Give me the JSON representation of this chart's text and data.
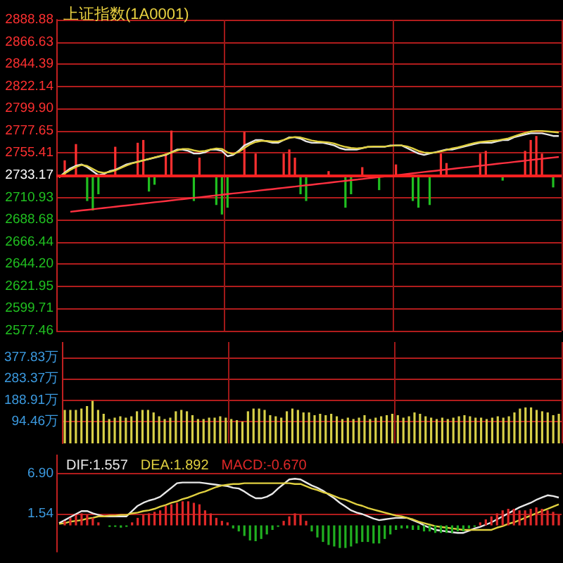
{
  "chart_data": [
    {
      "type": "line",
      "title": "上证指数(1A0001)",
      "categories": [
        null,
        null,
        null,
        null,
        null,
        null,
        null,
        null,
        null,
        null,
        null,
        null,
        null,
        null,
        null,
        null,
        null,
        null,
        null,
        null,
        null,
        null,
        null,
        null,
        null,
        null,
        null,
        null,
        null,
        null,
        null,
        null,
        null,
        null,
        null,
        null,
        null,
        null,
        null,
        null,
        null,
        null,
        null,
        null,
        null,
        null,
        null,
        null,
        null,
        null,
        null,
        null,
        null,
        null,
        null,
        null,
        null,
        null,
        null,
        null,
        null,
        null,
        null,
        null,
        null,
        null,
        null,
        null,
        null,
        null,
        null,
        null,
        null,
        null,
        null,
        null,
        null,
        null,
        null,
        null,
        null,
        null,
        null,
        null,
        null,
        null,
        null,
        null,
        null,
        null
      ],
      "ylim": [
        2577.46,
        2888.88
      ],
      "yticks": [
        2577.46,
        2599.71,
        2621.95,
        {
          "value": 2644.2,
          "label": "2644.20"
        },
        2666.44,
        2688.68,
        2710.93,
        2733.17,
        2755.41,
        2777.65,
        {
          "value": 2799.9,
          "label": "2799.90"
        },
        2822.14,
        2844.39,
        2866.63,
        2888.88
      ],
      "grid": true,
      "marker": "none",
      "ref_lines": [
        {
          "axis": "y",
          "value": 2733.17,
          "color": "#ff2020"
        }
      ],
      "series": [
        {
          "color": "#e8e8e8",
          "values": [
            2731.1,
            2735.9,
            2740.0,
            2742.7,
            2744.0,
            2741.3,
            2737.2,
            2733.2,
            2734.5,
            2737.2,
            2738.6,
            2741.3,
            2744.0,
            2745.4,
            2746.7,
            2748.1,
            2749.4,
            2750.8,
            2752.2,
            2753.5,
            2756.2,
            2758.9,
            2758.9,
            2757.6,
            2754.9,
            2754.9,
            2756.2,
            2758.9,
            2758.9,
            2757.6,
            2752.2,
            2753.5,
            2757.6,
            2763.0,
            2765.7,
            2768.4,
            2768.4,
            2767.1,
            2765.7,
            2765.7,
            2768.4,
            2771.1,
            2771.1,
            2769.8,
            2767.1,
            2765.7,
            2765.7,
            2765.7,
            2764.4,
            2763.0,
            2760.3,
            2758.9,
            2758.9,
            2758.9,
            2760.3,
            2761.6,
            2761.6,
            2761.6,
            2761.6,
            2763.0,
            2763.0,
            2763.0,
            2760.3,
            2757.6,
            2754.9,
            2753.5,
            2754.9,
            2756.2,
            2757.6,
            2758.9,
            2758.9,
            2760.3,
            2761.6,
            2763.0,
            2764.4,
            2765.7,
            2765.7,
            2765.7,
            2767.1,
            2768.4,
            2768.4,
            2771.1,
            2772.5,
            2773.9,
            2775.2,
            2775.2,
            2775.2,
            2773.9,
            2772.5,
            2772.5
          ]
        },
        {
          "color": "#e0d040",
          "values": [
            2731.1,
            2735.0,
            2738.5,
            2741.5,
            2743.5,
            2742.5,
            2739.5,
            2736.5,
            2735.5,
            2736.5,
            2738.0,
            2740.5,
            2743.0,
            2745.0,
            2746.5,
            2748.0,
            2749.5,
            2751.0,
            2752.5,
            2754.0,
            2756.0,
            2758.0,
            2759.5,
            2759.5,
            2758.0,
            2757.0,
            2757.5,
            2759.0,
            2760.0,
            2759.5,
            2756.0,
            2754.5,
            2756.5,
            2760.5,
            2764.0,
            2766.5,
            2767.5,
            2767.5,
            2767.0,
            2767.0,
            2768.5,
            2770.5,
            2771.5,
            2771.0,
            2769.5,
            2768.0,
            2767.0,
            2766.5,
            2766.0,
            2765.0,
            2763.0,
            2761.5,
            2760.5,
            2760.0,
            2760.5,
            2761.5,
            2762.0,
            2762.0,
            2762.0,
            2762.5,
            2763.0,
            2763.0,
            2762.0,
            2760.0,
            2757.5,
            2756.0,
            2755.5,
            2756.0,
            2757.0,
            2758.5,
            2760.0,
            2761.0,
            2762.5,
            2764.0,
            2765.5,
            2766.5,
            2767.0,
            2767.5,
            2768.0,
            2769.0,
            2770.0,
            2772.0,
            2774.0,
            2775.5,
            2777.0,
            2777.5,
            2777.5,
            2777.0,
            2776.5,
            2776.0
          ]
        },
        {
          "type": "bar",
          "color": "#ff3030",
          "base": [
            null,
            2733.17,
            null,
            2733.17,
            null,
            null,
            null,
            null,
            null,
            null,
            2733.17,
            null,
            null,
            null,
            2733.17,
            2733.17,
            null,
            null,
            null,
            2733.17,
            2733.17,
            null,
            null,
            null,
            null,
            2733.17,
            null,
            null,
            null,
            null,
            null,
            null,
            null,
            2733.17,
            null,
            2733.17,
            null,
            null,
            null,
            null,
            2733.17,
            2733.17,
            2733.17,
            null,
            null,
            null,
            null,
            null,
            2733.17,
            null,
            null,
            null,
            null,
            null,
            2733.17,
            null,
            null,
            null,
            null,
            null,
            2733.17,
            null,
            null,
            null,
            null,
            null,
            null,
            null,
            2733.17,
            2733.17,
            null,
            null,
            null,
            null,
            null,
            2733.17,
            2733.17,
            null,
            null,
            null,
            null,
            null,
            null,
            2733.17,
            2733.17,
            2733.17,
            2733.17,
            null,
            null,
            null
          ],
          "values": [
            null,
            14.9,
            null,
            31.2,
            null,
            null,
            null,
            null,
            null,
            null,
            28.5,
            null,
            null,
            null,
            32.5,
            35.3,
            null,
            null,
            null,
            21.7,
            44.7,
            null,
            null,
            null,
            null,
            17.6,
            null,
            null,
            null,
            null,
            null,
            null,
            null,
            43.4,
            null,
            21.7,
            null,
            null,
            null,
            null,
            21.7,
            25.8,
            17.6,
            null,
            null,
            null,
            null,
            null,
            4.1,
            null,
            null,
            null,
            null,
            null,
            8.1,
            null,
            null,
            null,
            null,
            null,
            10.8,
            null,
            null,
            null,
            null,
            null,
            null,
            null,
            21.7,
            12.2,
            null,
            null,
            null,
            null,
            null,
            21.7,
            24.4,
            null,
            null,
            null,
            null,
            null,
            null,
            24.4,
            35.3,
            39.3,
            21.7,
            null,
            null,
            null
          ]
        },
        {
          "type": "bar",
          "color": "#20c020",
          "base": [
            null,
            null,
            null,
            null,
            null,
            2733.17,
            2733.17,
            2733.17,
            null,
            null,
            null,
            null,
            null,
            null,
            null,
            null,
            2733.17,
            2733.17,
            null,
            null,
            null,
            null,
            null,
            null,
            2733.17,
            null,
            null,
            null,
            2733.17,
            2733.17,
            2733.17,
            null,
            null,
            null,
            null,
            null,
            null,
            null,
            null,
            null,
            null,
            null,
            null,
            2733.17,
            2733.17,
            null,
            null,
            null,
            null,
            null,
            null,
            2733.17,
            2733.17,
            null,
            null,
            null,
            null,
            2733.17,
            null,
            null,
            null,
            null,
            null,
            2733.17,
            2733.17,
            null,
            2733.17,
            null,
            null,
            null,
            null,
            null,
            null,
            null,
            null,
            null,
            null,
            null,
            null,
            2733.17,
            null,
            null,
            null,
            null,
            null,
            null,
            null,
            null,
            2733.17,
            null
          ],
          "values": [
            null,
            null,
            null,
            null,
            null,
            -25.8,
            -35.3,
            -19.0,
            null,
            null,
            null,
            null,
            null,
            null,
            null,
            null,
            -16.3,
            -9.5,
            null,
            null,
            null,
            null,
            null,
            null,
            -25.8,
            null,
            null,
            null,
            -29.8,
            -39.3,
            -32.5,
            null,
            null,
            null,
            null,
            null,
            null,
            null,
            null,
            null,
            null,
            null,
            null,
            -19.0,
            -25.8,
            null,
            null,
            null,
            null,
            null,
            null,
            -32.5,
            -19.0,
            null,
            null,
            null,
            null,
            -14.9,
            null,
            null,
            null,
            null,
            null,
            -25.8,
            -32.5,
            null,
            -29.8,
            null,
            null,
            null,
            null,
            null,
            null,
            null,
            null,
            null,
            null,
            null,
            null,
            -5.4,
            null,
            null,
            null,
            null,
            null,
            null,
            null,
            null,
            -12.2,
            null
          ]
        },
        {
          "color": "#ff3040",
          "values": [
            null,
            null,
            2696.6,
            2697.2,
            2697.9,
            2698.5,
            2699.1,
            2699.8,
            2700.4,
            2701.0,
            2701.6,
            2702.3,
            2702.9,
            2703.5,
            2704.2,
            2704.8,
            2705.4,
            2706.1,
            2706.7,
            2707.3,
            2708.0,
            2708.6,
            2709.2,
            2709.9,
            2710.5,
            2711.1,
            2711.7,
            2712.4,
            2713.0,
            2713.6,
            2714.3,
            2714.9,
            2715.5,
            2716.2,
            2716.8,
            2717.4,
            2718.1,
            2718.7,
            2719.3,
            2720.0,
            2720.6,
            2721.2,
            2721.8,
            2722.5,
            2723.1,
            2723.7,
            2724.4,
            2725.0,
            2725.6,
            2726.3,
            2726.9,
            2727.5,
            2728.2,
            2728.8,
            2729.4,
            2730.1,
            2730.7,
            2731.3,
            2731.9,
            2732.6,
            2733.2,
            2733.8,
            2734.5,
            2735.1,
            2735.7,
            2736.4,
            2737.0,
            2737.6,
            2738.3,
            2738.9,
            2739.5,
            2740.2,
            2740.8,
            2741.4,
            2742.0,
            2742.7,
            2743.3,
            2743.9,
            2744.6,
            2745.2,
            2745.8,
            2746.5,
            2747.1,
            2747.7,
            2748.4,
            2749.0,
            2749.6,
            2750.3,
            2750.9,
            2751.5
          ]
        }
      ]
    },
    {
      "type": "bar",
      "categories": [
        null,
        null,
        null,
        null,
        null,
        null,
        null,
        null,
        null,
        null,
        null,
        null,
        null,
        null,
        null,
        null,
        null,
        null,
        null,
        null,
        null,
        null,
        null,
        null,
        null,
        null,
        null,
        null,
        null,
        null,
        null,
        null,
        null,
        null,
        null,
        null,
        null,
        null,
        null,
        null,
        null,
        null,
        null,
        null,
        null,
        null,
        null,
        null,
        null,
        null,
        null,
        null,
        null,
        null,
        null,
        null,
        null,
        null,
        null,
        null,
        null,
        null,
        null,
        null,
        null,
        null,
        null,
        null,
        null,
        null,
        null,
        null,
        null,
        null,
        null,
        null,
        null,
        null,
        null,
        null,
        null,
        null,
        null,
        null,
        null,
        null,
        null,
        null,
        null,
        null
      ],
      "ylim": [
        0,
        445.5
      ],
      "yticks": [
        {
          "value": 94.46,
          "label": "94.46万"
        },
        {
          "value": 188.91,
          "label": "188.91万"
        },
        {
          "value": 283.37,
          "label": "283.37万"
        },
        {
          "value": 377.83,
          "label": "377.83万"
        }
      ],
      "grid": true,
      "color": "#d8d048",
      "values": [
        147,
        147,
        147,
        153,
        164,
        187,
        147,
        130,
        107,
        113,
        119,
        113,
        119,
        141,
        147,
        147,
        136,
        119,
        107,
        113,
        141,
        147,
        141,
        124,
        107,
        107,
        113,
        113,
        119,
        113,
        107,
        102,
        96,
        141,
        153,
        153,
        147,
        124,
        119,
        113,
        141,
        153,
        147,
        136,
        136,
        124,
        130,
        124,
        130,
        119,
        107,
        113,
        107,
        113,
        124,
        107,
        113,
        119,
        124,
        130,
        124,
        113,
        119,
        136,
        130,
        119,
        113,
        107,
        113,
        107,
        113,
        119,
        124,
        119,
        113,
        113,
        107,
        113,
        119,
        113,
        119,
        136,
        153,
        158,
        158,
        147,
        141,
        136,
        124,
        130
      ]
    },
    {
      "type": "line",
      "categories": [
        null,
        null,
        null,
        null,
        null,
        null,
        null,
        null,
        null,
        null,
        null,
        null,
        null,
        null,
        null,
        null,
        null,
        null,
        null,
        null,
        null,
        null,
        null,
        null,
        null,
        null,
        null,
        null,
        null,
        null,
        null,
        null,
        null,
        null,
        null,
        null,
        null,
        null,
        null,
        null,
        null,
        null,
        null,
        null,
        null,
        null,
        null,
        null,
        null,
        null,
        null,
        null,
        null,
        null,
        null,
        null,
        null,
        null,
        null,
        null,
        null,
        null,
        null,
        null,
        null,
        null,
        null,
        null,
        null,
        null,
        null,
        null,
        null,
        null,
        null,
        null,
        null,
        null,
        null,
        null,
        null,
        null,
        null,
        null,
        null,
        null,
        null,
        null,
        null,
        null
      ],
      "ylim": [
        -3.5,
        9.4
      ],
      "yticks": [
        1.54,
        {
          "value": 6.9,
          "label": "6.90"
        }
      ],
      "grid": "y",
      "marker": "none",
      "legend": "top left",
      "series": [
        {
          "name": "DIF:1.557",
          "color": "#e8e8e8",
          "values": [
            0.3,
            0.7,
            1.1,
            1.5,
            1.9,
            1.9,
            1.6,
            1.4,
            1.2,
            1.2,
            1.2,
            1.2,
            1.2,
            1.9,
            2.6,
            3.0,
            3.3,
            3.5,
            3.8,
            4.4,
            5.0,
            5.6,
            5.7,
            5.7,
            5.7,
            5.7,
            5.6,
            5.5,
            5.4,
            5.3,
            5.2,
            5.0,
            4.9,
            4.5,
            4.0,
            3.6,
            3.6,
            3.8,
            4.2,
            4.9,
            5.5,
            6.1,
            6.2,
            6.1,
            5.7,
            5.3,
            5.0,
            4.6,
            4.1,
            3.6,
            3.0,
            2.5,
            2.0,
            1.7,
            1.5,
            1.2,
            0.9,
            0.7,
            0.8,
            0.9,
            1.0,
            1.0,
            1.0,
            0.7,
            0.4,
            0.0,
            -0.3,
            -0.6,
            -0.7,
            -0.8,
            -0.9,
            -1.0,
            -1.0,
            -0.7,
            -0.4,
            -0.2,
            0.1,
            0.4,
            0.8,
            1.2,
            1.6,
            2.0,
            2.4,
            2.7,
            3.0,
            3.4,
            3.7,
            4.0,
            3.9,
            3.7
          ]
        },
        {
          "name": "DEA:1.892",
          "color": "#e0d040",
          "values": [
            0.2,
            0.3,
            0.5,
            0.6,
            0.7,
            0.9,
            1.0,
            1.2,
            1.2,
            1.3,
            1.3,
            1.4,
            1.4,
            1.6,
            1.7,
            1.9,
            2.0,
            2.2,
            2.5,
            2.7,
            3.0,
            3.2,
            3.5,
            3.7,
            4.0,
            4.3,
            4.5,
            4.8,
            5.1,
            5.3,
            5.4,
            5.5,
            5.5,
            5.6,
            5.6,
            5.6,
            5.6,
            5.6,
            5.6,
            5.6,
            5.6,
            5.6,
            5.5,
            5.5,
            5.2,
            4.9,
            4.7,
            4.4,
            4.2,
            3.9,
            3.6,
            3.4,
            3.1,
            2.8,
            2.6,
            2.3,
            2.1,
            1.9,
            1.7,
            1.5,
            1.3,
            1.2,
            1.0,
            0.8,
            0.5,
            0.3,
            0.1,
            -0.1,
            -0.2,
            -0.3,
            -0.4,
            -0.5,
            -0.6,
            -0.6,
            -0.6,
            -0.6,
            -0.6,
            -0.6,
            -0.3,
            -0.1,
            0.2,
            0.4,
            0.7,
            1.0,
            1.3,
            1.6,
            1.9,
            2.2,
            2.5,
            2.8
          ]
        },
        {
          "name": "MACD:-0.670",
          "type": "bar",
          "color": "#e02828",
          "values": [
            null,
            0.6,
            1.0,
            1.4,
            1.6,
            1.4,
            1.0,
            0.4,
            null,
            null,
            null,
            null,
            null,
            0.4,
            1.0,
            1.4,
            1.6,
            1.8,
            2.0,
            2.6,
            2.8,
            3.0,
            3.2,
            3.2,
            3.0,
            2.8,
            2.0,
            1.6,
            1.0,
            0.6,
            0.4,
            null,
            null,
            null,
            null,
            null,
            null,
            null,
            null,
            null,
            0.6,
            1.2,
            1.6,
            1.4,
            0.6,
            null,
            null,
            null,
            null,
            null,
            null,
            null,
            null,
            null,
            null,
            null,
            null,
            null,
            null,
            null,
            null,
            null,
            null,
            null,
            null,
            null,
            null,
            null,
            null,
            null,
            null,
            null,
            null,
            null,
            null,
            0.4,
            0.8,
            1.2,
            1.6,
            2.0,
            2.2,
            2.2,
            2.0,
            2.0,
            2.2,
            2.4,
            2.2,
            2.0,
            1.8,
            1.4
          ]
        },
        {
          "type": "bar",
          "color": "#20b020",
          "values": [
            null,
            null,
            null,
            null,
            null,
            null,
            null,
            null,
            null,
            -0.2,
            -0.2,
            -0.3,
            -0.2,
            null,
            null,
            null,
            null,
            null,
            null,
            null,
            null,
            null,
            null,
            null,
            null,
            null,
            null,
            null,
            null,
            null,
            null,
            -0.4,
            -0.8,
            -1.4,
            -2.0,
            -2.1,
            -1.8,
            -1.2,
            -0.6,
            -0.2,
            null,
            null,
            null,
            null,
            null,
            -0.8,
            -1.6,
            -2.2,
            -2.6,
            -2.8,
            -3.0,
            -3.0,
            -2.8,
            -2.4,
            -2.2,
            -2.2,
            -2.4,
            -2.4,
            -1.8,
            -1.2,
            -0.6,
            -0.4,
            -0.4,
            -0.6,
            -0.6,
            -0.8,
            -0.8,
            -1.0,
            -1.0,
            -1.0,
            -1.0,
            -0.8,
            -0.8,
            -0.4,
            -0.2,
            null,
            null,
            null,
            null,
            null,
            null,
            null,
            null,
            null,
            null,
            null,
            null,
            null,
            null,
            null
          ]
        }
      ]
    }
  ]
}
